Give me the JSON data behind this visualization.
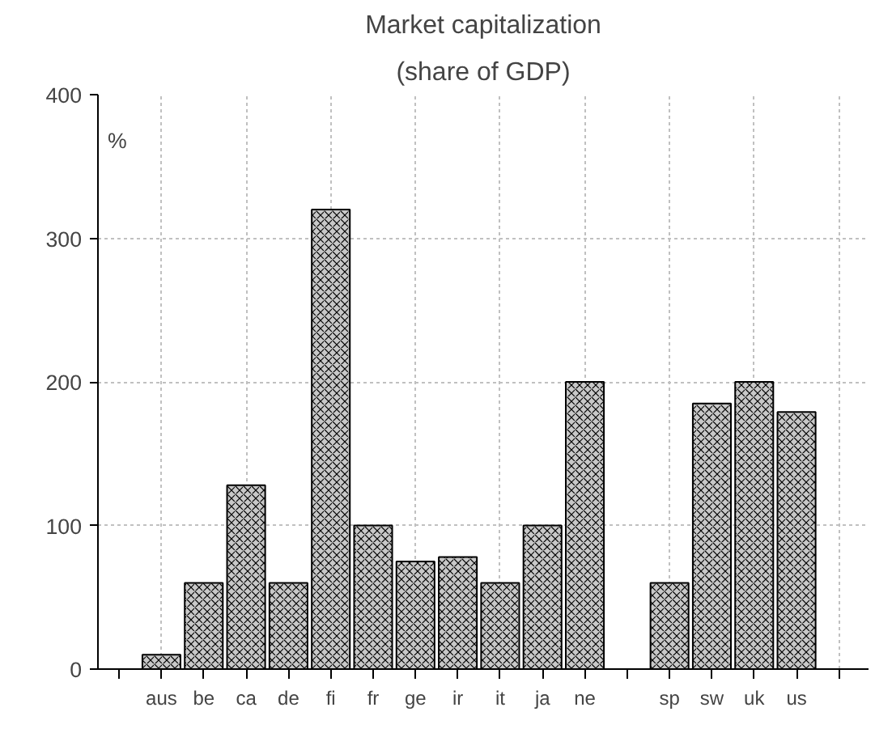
{
  "chart_data": {
    "type": "bar",
    "title": "Market capitalization",
    "subtitle": "(share of GDP)",
    "ylabel": "%",
    "categories": [
      "aus",
      "be",
      "ca",
      "de",
      "fi",
      "fr",
      "ge",
      "ir",
      "it",
      "ja",
      "ne",
      null,
      "sp",
      "sw",
      "uk",
      "us",
      null
    ],
    "values": [
      10,
      60,
      128,
      60,
      320,
      100,
      75,
      78,
      60,
      100,
      200,
      null,
      60,
      185,
      200,
      179,
      null
    ],
    "color": "#c8c8c8",
    "ylim": [
      0,
      400
    ],
    "yticks": [
      0,
      100,
      200,
      300,
      400
    ],
    "grid": true
  }
}
